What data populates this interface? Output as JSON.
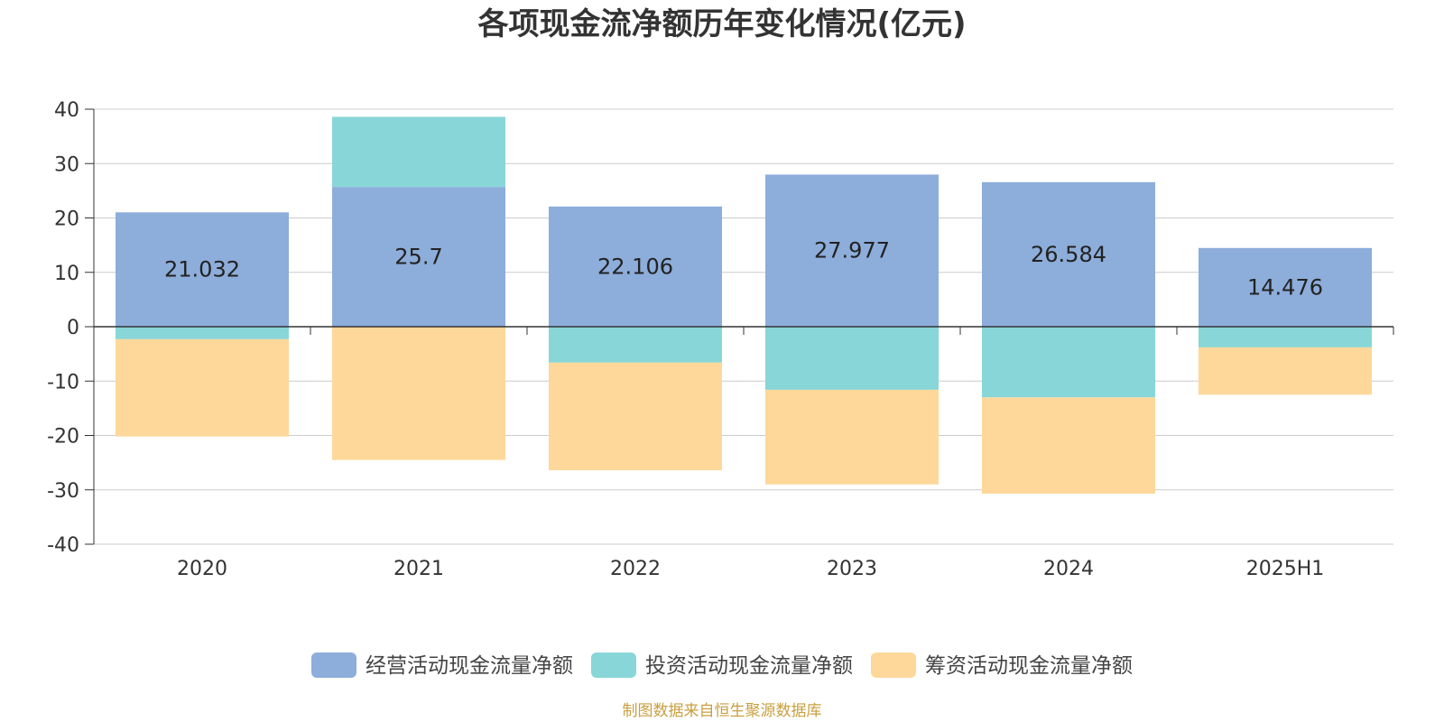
{
  "chart_data": {
    "type": "bar",
    "stacked": true,
    "title": "各项现金流净额历年变化情况(亿元)",
    "categories": [
      "2020",
      "2021",
      "2022",
      "2023",
      "2024",
      "2025H1"
    ],
    "ylim": [
      -40,
      40
    ],
    "yticks": [
      40,
      30,
      20,
      10,
      0,
      -10,
      -20,
      -30,
      -40
    ],
    "grid": true,
    "legend_position": "bottom",
    "series": [
      {
        "name": "经营活动现金流量净额",
        "color": "#8dadda",
        "values": [
          21.032,
          25.7,
          22.106,
          27.977,
          26.584,
          14.476
        ],
        "labels": [
          "21.032",
          "25.7",
          "22.106",
          "27.977",
          "26.584",
          "14.476"
        ]
      },
      {
        "name": "投资活动现金流量净额",
        "color": "#88d6d8",
        "values": [
          -2.3,
          12.9,
          -6.6,
          -11.6,
          -13.0,
          -3.8
        ]
      },
      {
        "name": "筹资活动现金流量净额",
        "color": "#fed89a",
        "values": [
          -17.9,
          -24.5,
          -19.8,
          -17.4,
          -17.7,
          -8.7
        ]
      }
    ],
    "source": "制图数据来自恒生聚源数据库"
  }
}
